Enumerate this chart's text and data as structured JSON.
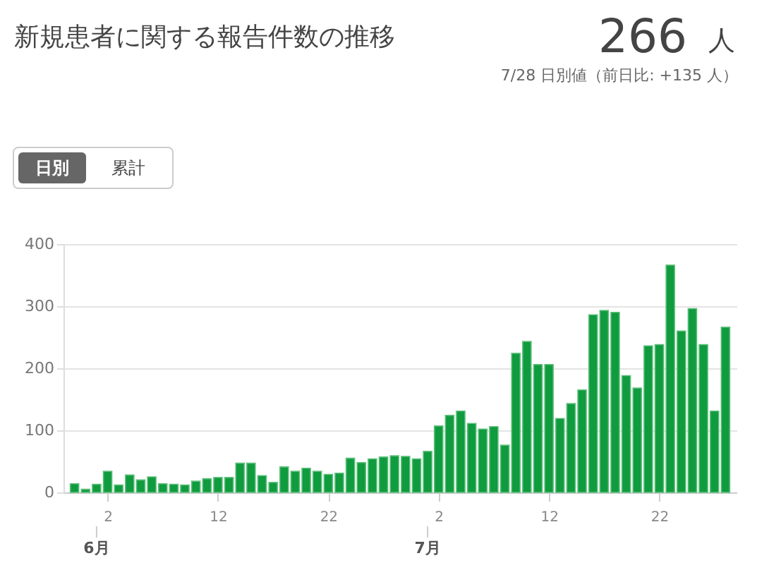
{
  "chart_data": {
    "type": "bar",
    "title": "新規患者に関する報告件数の推移",
    "annotations": [
      "266",
      "人",
      "7/28 日別値（前日比: +135 人）",
      "日別",
      "累計",
      "6月",
      "7月"
    ],
    "x": [
      "--05-30",
      "--05-31",
      "--06-01",
      "--06-02",
      "--06-03",
      "--06-04",
      "--06-05",
      "--06-06",
      "--06-07",
      "--06-08",
      "--06-09",
      "--06-10",
      "--06-11",
      "--06-12",
      "--06-13",
      "--06-14",
      "--06-15",
      "--06-16",
      "--06-17",
      "--06-18",
      "--06-19",
      "--06-20",
      "--06-21",
      "--06-22",
      "--06-23",
      "--06-24",
      "--06-25",
      "--06-26",
      "--06-27",
      "--06-28",
      "--06-29",
      "--06-30",
      "--07-01",
      "--07-02",
      "--07-03",
      "--07-04",
      "--07-05",
      "--07-06",
      "--07-07",
      "--07-08",
      "--07-09",
      "--07-10",
      "--07-11",
      "--07-12",
      "--07-13",
      "--07-14",
      "--07-15",
      "--07-16",
      "--07-17",
      "--07-18",
      "--07-19",
      "--07-20",
      "--07-21",
      "--07-22",
      "--07-23",
      "--07-24",
      "--07-25",
      "--07-26",
      "--07-27",
      "--07-28"
    ],
    "values": [
      14,
      5,
      13,
      34,
      12,
      28,
      20,
      25,
      14,
      13,
      12,
      18,
      22,
      24,
      24,
      47,
      47,
      27,
      16,
      41,
      34,
      39,
      34,
      29,
      31,
      55,
      48,
      54,
      57,
      59,
      58,
      54,
      66,
      107,
      124,
      131,
      111,
      102,
      106,
      76,
      224,
      243,
      206,
      206,
      119,
      143,
      165,
      286,
      293,
      290,
      188,
      168,
      236,
      238,
      366,
      260,
      296,
      238,
      131,
      266
    ],
    "color": "#0f9b3e",
    "xlim": [
      "--05-29",
      "--07-29"
    ],
    "xticks": [
      {
        "value": "--06-02",
        "label": "2"
      },
      {
        "value": "--06-12",
        "label": "12"
      },
      {
        "value": "--06-22",
        "label": "22"
      },
      {
        "value": "--07-02",
        "label": "2"
      },
      {
        "value": "--07-12",
        "label": "12"
      },
      {
        "value": "--07-22",
        "label": "22"
      }
    ],
    "ylim": [
      0,
      400
    ],
    "yticks": [
      0,
      100,
      200,
      300,
      400
    ],
    "grid": "y"
  }
}
